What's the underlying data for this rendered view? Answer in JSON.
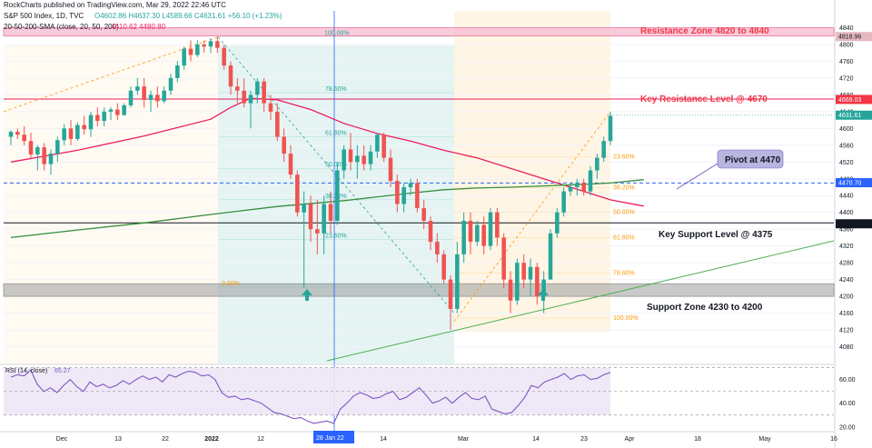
{
  "header": {
    "line1": "RockCharts published on TradingView.com, Mar 29, 2022 22:46 UTC",
    "symbol": "S&P 500 Index, 1D, TVC",
    "ohlc": "O4602.86 H4637.30 L4589.66 C4631.61 +56.10 (+1.23%)",
    "sma_label": "20-50-200-SMA (close, 20, 50, 200)",
    "sma_values": "4410.62 4480.80"
  },
  "annotations": {
    "resistance_zone": "Resistance Zone 4820 to 4840",
    "key_resistance": "Key Resistance Level @ 4670",
    "pivot": "Pivot at 4470",
    "key_support": "Key Support Level @ 4375",
    "support_zone": "Support Zone 4230 to 4200"
  },
  "price_badges": {
    "resistance_zone": "4818.96",
    "key_resistance": "4669.03",
    "last": "4631.61",
    "pivot": "4470.70",
    "support": "4372.85"
  },
  "rsi_label": "RSI (14, close)",
  "rsi_value": "65.27",
  "crosshair_label": "28 Jan 22",
  "colors": {
    "up": "#26a69a",
    "down": "#ef5350",
    "sma50": "#e91e63",
    "sma200": "#388e3c",
    "rsi": "#7e57c2",
    "annotation": "#f23645",
    "badge": "#e5b8bf",
    "pivot_box": "#b8b6e0",
    "fib_blue": "#26a69a",
    "fib_orange": "#ff9800"
  },
  "chart_data": [
    {
      "type": "candlestick",
      "title": "S&P 500 Index, 1D, TVC",
      "x_ticks": [
        "Dec",
        "13",
        "22",
        "2022",
        "12",
        "28 Jan 22",
        "14",
        "Mar",
        "14",
        "23",
        "Apr",
        "18",
        "May",
        "16"
      ],
      "y_ticks": [
        4080,
        4120,
        4160,
        4200,
        4240,
        4280,
        4320,
        4360,
        4400,
        4440,
        4480,
        4520,
        4560,
        4600,
        4640,
        4680,
        4720,
        4760,
        4800,
        4840
      ],
      "ylim": [
        4040,
        4880
      ],
      "candles": [
        {
          "o": 4580,
          "h": 4595,
          "l": 4560,
          "c": 4592
        },
        {
          "o": 4592,
          "h": 4600,
          "l": 4575,
          "c": 4585
        },
        {
          "o": 4585,
          "h": 4605,
          "l": 4560,
          "c": 4570
        },
        {
          "o": 4570,
          "h": 4590,
          "l": 4530,
          "c": 4538
        },
        {
          "o": 4538,
          "h": 4560,
          "l": 4500,
          "c": 4555
        },
        {
          "o": 4555,
          "h": 4565,
          "l": 4500,
          "c": 4515
        },
        {
          "o": 4515,
          "h": 4550,
          "l": 4490,
          "c": 4540
        },
        {
          "o": 4540,
          "h": 4580,
          "l": 4520,
          "c": 4572
        },
        {
          "o": 4572,
          "h": 4610,
          "l": 4560,
          "c": 4600
        },
        {
          "o": 4600,
          "h": 4620,
          "l": 4560,
          "c": 4575
        },
        {
          "o": 4575,
          "h": 4615,
          "l": 4570,
          "c": 4608
        },
        {
          "o": 4608,
          "h": 4630,
          "l": 4585,
          "c": 4598
        },
        {
          "o": 4598,
          "h": 4640,
          "l": 4580,
          "c": 4632
        },
        {
          "o": 4632,
          "h": 4650,
          "l": 4605,
          "c": 4618
        },
        {
          "o": 4618,
          "h": 4650,
          "l": 4605,
          "c": 4640
        },
        {
          "o": 4640,
          "h": 4650,
          "l": 4620,
          "c": 4645
        },
        {
          "o": 4645,
          "h": 4660,
          "l": 4620,
          "c": 4632
        },
        {
          "o": 4632,
          "h": 4660,
          "l": 4630,
          "c": 4655
        },
        {
          "o": 4655,
          "h": 4700,
          "l": 4650,
          "c": 4690
        },
        {
          "o": 4690,
          "h": 4720,
          "l": 4680,
          "c": 4700
        },
        {
          "o": 4700,
          "h": 4720,
          "l": 4650,
          "c": 4668
        },
        {
          "o": 4668,
          "h": 4690,
          "l": 4640,
          "c": 4680
        },
        {
          "o": 4680,
          "h": 4700,
          "l": 4650,
          "c": 4665
        },
        {
          "o": 4665,
          "h": 4700,
          "l": 4660,
          "c": 4690
        },
        {
          "o": 4690,
          "h": 4730,
          "l": 4680,
          "c": 4720
        },
        {
          "o": 4720,
          "h": 4760,
          "l": 4710,
          "c": 4750
        },
        {
          "o": 4750,
          "h": 4795,
          "l": 4740,
          "c": 4790
        },
        {
          "o": 4790,
          "h": 4810,
          "l": 4760,
          "c": 4775
        },
        {
          "o": 4775,
          "h": 4810,
          "l": 4770,
          "c": 4800
        },
        {
          "o": 4800,
          "h": 4810,
          "l": 4780,
          "c": 4795
        },
        {
          "o": 4795,
          "h": 4815,
          "l": 4780,
          "c": 4808
        },
        {
          "o": 4808,
          "h": 4818,
          "l": 4780,
          "c": 4792
        },
        {
          "o": 4792,
          "h": 4800,
          "l": 4740,
          "c": 4750
        },
        {
          "o": 4750,
          "h": 4760,
          "l": 4680,
          "c": 4700
        },
        {
          "o": 4700,
          "h": 4720,
          "l": 4660,
          "c": 4690
        },
        {
          "o": 4690,
          "h": 4720,
          "l": 4650,
          "c": 4660
        },
        {
          "o": 4660,
          "h": 4690,
          "l": 4600,
          "c": 4680
        },
        {
          "o": 4680,
          "h": 4720,
          "l": 4660,
          "c": 4712
        },
        {
          "o": 4712,
          "h": 4720,
          "l": 4640,
          "c": 4660
        },
        {
          "o": 4660,
          "h": 4680,
          "l": 4620,
          "c": 4640
        },
        {
          "o": 4640,
          "h": 4660,
          "l": 4570,
          "c": 4580
        },
        {
          "o": 4580,
          "h": 4600,
          "l": 4520,
          "c": 4540
        },
        {
          "o": 4540,
          "h": 4560,
          "l": 4480,
          "c": 4490
        },
        {
          "o": 4490,
          "h": 4500,
          "l": 4390,
          "c": 4400
        },
        {
          "o": 4400,
          "h": 4450,
          "l": 4220,
          "c": 4420
        },
        {
          "o": 4420,
          "h": 4440,
          "l": 4330,
          "c": 4360
        },
        {
          "o": 4360,
          "h": 4430,
          "l": 4300,
          "c": 4350
        },
        {
          "o": 4350,
          "h": 4440,
          "l": 4300,
          "c": 4420
        },
        {
          "o": 4420,
          "h": 4450,
          "l": 4350,
          "c": 4380
        },
        {
          "o": 4380,
          "h": 4520,
          "l": 4370,
          "c": 4500
        },
        {
          "o": 4500,
          "h": 4560,
          "l": 4480,
          "c": 4550
        },
        {
          "o": 4550,
          "h": 4590,
          "l": 4500,
          "c": 4520
        },
        {
          "o": 4520,
          "h": 4560,
          "l": 4480,
          "c": 4535
        },
        {
          "o": 4535,
          "h": 4560,
          "l": 4500,
          "c": 4515
        },
        {
          "o": 4515,
          "h": 4560,
          "l": 4500,
          "c": 4545
        },
        {
          "o": 4545,
          "h": 4590,
          "l": 4530,
          "c": 4585
        },
        {
          "o": 4585,
          "h": 4590,
          "l": 4520,
          "c": 4530
        },
        {
          "o": 4530,
          "h": 4550,
          "l": 4460,
          "c": 4475
        },
        {
          "o": 4475,
          "h": 4490,
          "l": 4400,
          "c": 4420
        },
        {
          "o": 4420,
          "h": 4470,
          "l": 4400,
          "c": 4460
        },
        {
          "o": 4460,
          "h": 4480,
          "l": 4440,
          "c": 4470
        },
        {
          "o": 4470,
          "h": 4480,
          "l": 4400,
          "c": 4410
        },
        {
          "o": 4410,
          "h": 4430,
          "l": 4360,
          "c": 4380
        },
        {
          "o": 4380,
          "h": 4390,
          "l": 4310,
          "c": 4330
        },
        {
          "o": 4330,
          "h": 4350,
          "l": 4280,
          "c": 4300
        },
        {
          "o": 4300,
          "h": 4310,
          "l": 4230,
          "c": 4240
        },
        {
          "o": 4240,
          "h": 4250,
          "l": 4120,
          "c": 4170
        },
        {
          "o": 4170,
          "h": 4330,
          "l": 4160,
          "c": 4300
        },
        {
          "o": 4300,
          "h": 4400,
          "l": 4280,
          "c": 4380
        },
        {
          "o": 4380,
          "h": 4400,
          "l": 4300,
          "c": 4330
        },
        {
          "o": 4330,
          "h": 4380,
          "l": 4320,
          "c": 4370
        },
        {
          "o": 4370,
          "h": 4390,
          "l": 4300,
          "c": 4320
        },
        {
          "o": 4320,
          "h": 4410,
          "l": 4310,
          "c": 4400
        },
        {
          "o": 4400,
          "h": 4410,
          "l": 4320,
          "c": 4340
        },
        {
          "o": 4340,
          "h": 4350,
          "l": 4220,
          "c": 4240
        },
        {
          "o": 4240,
          "h": 4260,
          "l": 4160,
          "c": 4190
        },
        {
          "o": 4190,
          "h": 4290,
          "l": 4180,
          "c": 4280
        },
        {
          "o": 4280,
          "h": 4300,
          "l": 4220,
          "c": 4240
        },
        {
          "o": 4240,
          "h": 4290,
          "l": 4200,
          "c": 4270
        },
        {
          "o": 4270,
          "h": 4280,
          "l": 4180,
          "c": 4200
        },
        {
          "o": 4200,
          "h": 4260,
          "l": 4160,
          "c": 4240
        },
        {
          "o": 4240,
          "h": 4360,
          "l": 4240,
          "c": 4350
        },
        {
          "o": 4350,
          "h": 4410,
          "l": 4340,
          "c": 4400
        },
        {
          "o": 4400,
          "h": 4460,
          "l": 4390,
          "c": 4450
        },
        {
          "o": 4450,
          "h": 4470,
          "l": 4440,
          "c": 4460
        },
        {
          "o": 4460,
          "h": 4480,
          "l": 4440,
          "c": 4470
        },
        {
          "o": 4470,
          "h": 4480,
          "l": 4440,
          "c": 4450
        },
        {
          "o": 4450,
          "h": 4510,
          "l": 4440,
          "c": 4500
        },
        {
          "o": 4500,
          "h": 4540,
          "l": 4480,
          "c": 4530
        },
        {
          "o": 4530,
          "h": 4580,
          "l": 4520,
          "c": 4570
        },
        {
          "o": 4570,
          "h": 4640,
          "l": 4560,
          "c": 4630
        }
      ],
      "sma50": [
        [
          0,
          4520
        ],
        [
          10,
          4548
        ],
        [
          20,
          4582
        ],
        [
          30,
          4622
        ],
        [
          33,
          4650
        ],
        [
          36,
          4672
        ],
        [
          40,
          4668
        ],
        [
          45,
          4645
        ],
        [
          50,
          4612
        ],
        [
          55,
          4588
        ],
        [
          60,
          4570
        ],
        [
          65,
          4548
        ],
        [
          70,
          4530
        ],
        [
          75,
          4505
        ],
        [
          80,
          4480
        ],
        [
          85,
          4455
        ],
        [
          90,
          4430
        ],
        [
          95,
          4415
        ]
      ],
      "sma200": [
        [
          0,
          4340
        ],
        [
          10,
          4358
        ],
        [
          20,
          4375
        ],
        [
          30,
          4395
        ],
        [
          40,
          4414
        ],
        [
          50,
          4428
        ],
        [
          55,
          4437
        ],
        [
          60,
          4446
        ],
        [
          65,
          4454
        ],
        [
          70,
          4458
        ],
        [
          75,
          4460
        ],
        [
          80,
          4463
        ],
        [
          85,
          4466
        ],
        [
          90,
          4470
        ],
        [
          95,
          4478
        ]
      ],
      "levels": {
        "resistance_zone": [
          4820,
          4840
        ],
        "key_resistance": 4670,
        "pivot": 4470,
        "key_support": 4375,
        "support_zone": [
          4200,
          4230
        ]
      },
      "fib_left": [
        {
          "label": "100.00%",
          "price": 4818
        },
        {
          "label": "78.60%",
          "price": 4685
        },
        {
          "label": "61.80%",
          "price": 4580
        },
        {
          "label": "50.00%",
          "price": 4505
        },
        {
          "label": "38.20%",
          "price": 4430
        },
        {
          "label": "23.60%",
          "price": 4335
        },
        {
          "label": "0.00%",
          "price": 4222
        }
      ],
      "fib_right": [
        {
          "label": "23.60%",
          "price": 4532
        },
        {
          "label": "38.20%",
          "price": 4459
        },
        {
          "label": "50.00%",
          "price": 4400
        },
        {
          "label": "61.80%",
          "price": 4340
        },
        {
          "label": "78.60%",
          "price": 4255
        },
        {
          "label": "100.00%",
          "price": 4148
        }
      ]
    },
    {
      "type": "line",
      "title": "RSI (14, close)",
      "y_ticks": [
        20,
        40,
        60
      ],
      "ylim": [
        16,
        72
      ],
      "band": [
        30,
        70
      ],
      "values": [
        62,
        64,
        63,
        68,
        56,
        50,
        53,
        49,
        55,
        60,
        54,
        50,
        58,
        54,
        56,
        53,
        55,
        59,
        56,
        60,
        63,
        60,
        62,
        58,
        64,
        62,
        65,
        67,
        66,
        63,
        64,
        60,
        49,
        45,
        46,
        43,
        44,
        42,
        40,
        36,
        32,
        31,
        29,
        27,
        28,
        25,
        23,
        24,
        25,
        23,
        35,
        40,
        46,
        49,
        47,
        44,
        45,
        48,
        50,
        43,
        45,
        49,
        53,
        47,
        40,
        42,
        45,
        40,
        45,
        49,
        44,
        43,
        46,
        35,
        33,
        31,
        32,
        38,
        45,
        55,
        53,
        58,
        60,
        62,
        65,
        60,
        63,
        64,
        60,
        61,
        64,
        66
      ]
    }
  ]
}
